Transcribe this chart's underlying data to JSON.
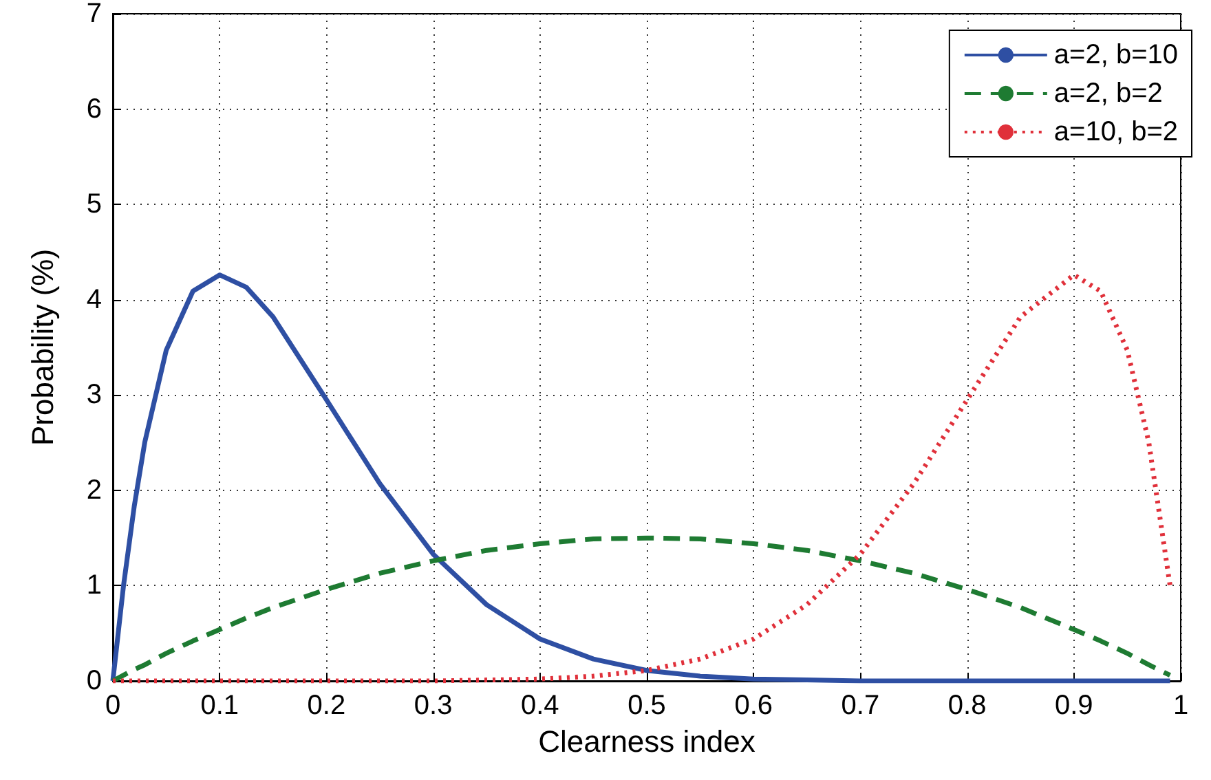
{
  "chart_data": {
    "type": "line",
    "xlabel": "Clearness index",
    "ylabel": "Probability (%)",
    "x": [
      0,
      0.01,
      0.02,
      0.03,
      0.05,
      0.075,
      0.1,
      0.125,
      0.15,
      0.2,
      0.25,
      0.3,
      0.35,
      0.4,
      0.45,
      0.5,
      0.55,
      0.6,
      0.65,
      0.7,
      0.75,
      0.8,
      0.85,
      0.9,
      0.925,
      0.95,
      0.97,
      0.99
    ],
    "series": [
      {
        "name": "a=2, b=10",
        "color": "#2e4fa3",
        "line_style": "solid",
        "values": [
          0,
          1.0,
          1.83,
          2.51,
          3.47,
          4.09,
          4.26,
          4.13,
          3.82,
          2.95,
          2.07,
          1.33,
          0.8,
          0.44,
          0.23,
          0.11,
          0.05,
          0.02,
          0.01,
          0,
          0,
          0,
          0,
          0,
          0,
          0,
          0,
          0
        ]
      },
      {
        "name": "a=2, b=2",
        "color": "#1e7b32",
        "line_style": "dashed",
        "values": [
          0,
          0.06,
          0.12,
          0.17,
          0.29,
          0.42,
          0.54,
          0.66,
          0.77,
          0.96,
          1.13,
          1.26,
          1.37,
          1.44,
          1.49,
          1.5,
          1.49,
          1.44,
          1.37,
          1.26,
          1.13,
          0.96,
          0.77,
          0.54,
          0.42,
          0.29,
          0.17,
          0.06
        ]
      },
      {
        "name": "a=10, b=2",
        "color": "#e0303a",
        "line_style": "dotted",
        "values": [
          0,
          0,
          0,
          0,
          0,
          0,
          0,
          0,
          0,
          0,
          0,
          0,
          0.01,
          0.02,
          0.05,
          0.11,
          0.23,
          0.44,
          0.8,
          1.33,
          2.07,
          2.95,
          3.82,
          4.26,
          4.09,
          3.47,
          2.51,
          1.0
        ]
      }
    ],
    "xlim": [
      0,
      1
    ],
    "xticks": [
      0,
      0.1,
      0.2,
      0.3,
      0.4,
      0.5,
      0.6,
      0.7,
      0.8,
      0.9,
      1
    ],
    "ylim": [
      0,
      7
    ],
    "yticks": [
      0,
      1,
      2,
      3,
      4,
      5,
      6,
      7
    ],
    "grid": true,
    "legend": "top right",
    "marker": "none"
  }
}
